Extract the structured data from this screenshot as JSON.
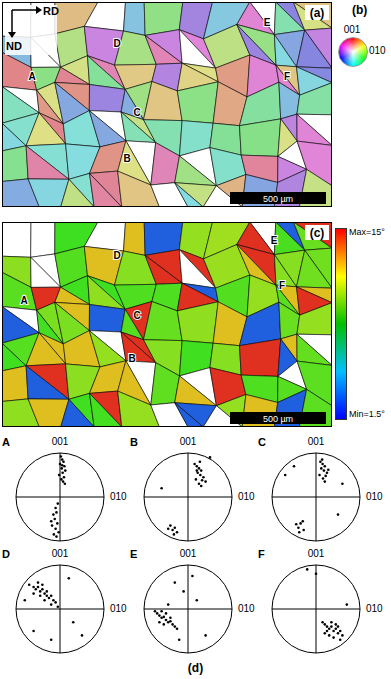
{
  "panel_a": {
    "label": "(a)",
    "directions": [
      "RD",
      "ND"
    ],
    "scale_bar": "500 µm",
    "grain_labels": [
      "A",
      "B",
      "C",
      "D",
      "E",
      "F"
    ]
  },
  "panel_b": {
    "label": "(b)",
    "top": "001",
    "right": "010"
  },
  "panel_c": {
    "label": "(c)",
    "scale_bar": "500 µm",
    "grain_labels": [
      "A",
      "B",
      "C",
      "D",
      "E",
      "F"
    ],
    "colorbar": {
      "max": "Max=15°",
      "min": "Min=1.5°"
    }
  },
  "panel_d": {
    "label": "(d)"
  },
  "chart_data": [
    {
      "type": "scatter",
      "title": "A",
      "top_label": "001",
      "right_label": "010",
      "xlim": [
        -1,
        1
      ],
      "ylim": [
        -1,
        1
      ],
      "tick_labels": false,
      "grid": false,
      "color": "#000000",
      "marker": "circle",
      "x": [
        0.02,
        0.05,
        0.08,
        0.0,
        0.1,
        0.04,
        0.12,
        0.06,
        -0.02,
        0.09,
        0.03,
        0.07,
        0.11,
        0.05,
        -0.05,
        -0.1,
        -0.08,
        -0.15,
        -0.12,
        -0.2,
        -0.06,
        -0.18,
        -0.1,
        -0.03,
        -0.14,
        -0.08
      ],
      "values": [
        0.92,
        0.85,
        0.8,
        0.75,
        0.7,
        0.65,
        0.6,
        0.55,
        0.5,
        0.45,
        0.4,
        0.35,
        0.3,
        0.72,
        -0.15,
        -0.25,
        -0.35,
        -0.4,
        -0.5,
        -0.55,
        -0.6,
        -0.65,
        -0.72,
        -0.8,
        -0.85,
        -0.9
      ]
    },
    {
      "type": "scatter",
      "title": "B",
      "top_label": "001",
      "right_label": "010",
      "xlim": [
        -1,
        1
      ],
      "ylim": [
        -1,
        1
      ],
      "tick_labels": false,
      "grid": false,
      "color": "#000000",
      "marker": "circle",
      "x": [
        0.15,
        0.2,
        0.25,
        0.3,
        0.22,
        0.28,
        0.35,
        0.18,
        0.32,
        0.25,
        0.4,
        0.2,
        0.27,
        0.3,
        -0.3,
        -0.35,
        -0.4,
        -0.25,
        -0.45,
        -0.32,
        0.5,
        -0.6
      ],
      "values": [
        0.75,
        0.7,
        0.65,
        0.6,
        0.55,
        0.5,
        0.45,
        0.4,
        0.38,
        0.3,
        0.35,
        0.6,
        0.8,
        0.25,
        -0.7,
        -0.75,
        -0.65,
        -0.8,
        -0.72,
        -0.85,
        0.9,
        0.2
      ]
    },
    {
      "type": "scatter",
      "title": "C",
      "top_label": "001",
      "right_label": "010",
      "xlim": [
        -1,
        1
      ],
      "ylim": [
        -1,
        1
      ],
      "tick_labels": false,
      "grid": false,
      "color": "#000000",
      "marker": "circle",
      "x": [
        0.1,
        0.15,
        0.2,
        0.12,
        0.18,
        0.25,
        0.08,
        0.22,
        0.16,
        0.28,
        0.14,
        0.2,
        -0.3,
        -0.35,
        -0.4,
        -0.28,
        -0.45,
        -0.38,
        0.6,
        -0.7,
        0.5,
        -0.5
      ],
      "values": [
        0.8,
        0.75,
        0.7,
        0.65,
        0.6,
        0.55,
        0.5,
        0.48,
        0.42,
        0.62,
        0.85,
        0.35,
        -0.55,
        -0.6,
        -0.7,
        -0.75,
        -0.62,
        -0.8,
        0.3,
        0.5,
        -0.4,
        0.7
      ]
    },
    {
      "type": "scatter",
      "title": "D",
      "top_label": "001",
      "right_label": "010",
      "xlim": [
        -1,
        1
      ],
      "ylim": [
        -1,
        1
      ],
      "tick_labels": false,
      "grid": false,
      "color": "#000000",
      "marker": "circle",
      "x": [
        -0.7,
        -0.6,
        -0.55,
        -0.5,
        -0.45,
        -0.4,
        -0.35,
        -0.3,
        -0.25,
        -0.2,
        -0.15,
        -0.1,
        -0.05,
        -0.5,
        -0.4,
        -0.3,
        -0.6,
        -0.2,
        -0.35,
        -0.45,
        -0.8,
        0.3,
        0.5,
        -0.2,
        0.2,
        -0.6
      ],
      "values": [
        0.55,
        0.5,
        0.45,
        0.5,
        0.4,
        0.45,
        0.35,
        0.3,
        0.25,
        0.3,
        0.2,
        0.15,
        0.05,
        0.6,
        0.55,
        0.4,
        0.35,
        0.1,
        0.2,
        0.3,
        0.2,
        -0.3,
        -0.6,
        -0.7,
        0.7,
        -0.5
      ]
    },
    {
      "type": "scatter",
      "title": "E",
      "top_label": "001",
      "right_label": "010",
      "xlim": [
        -1,
        1
      ],
      "ylim": [
        -1,
        1
      ],
      "tick_labels": false,
      "grid": false,
      "color": "#000000",
      "marker": "circle",
      "x": [
        -0.75,
        -0.7,
        -0.65,
        -0.6,
        -0.55,
        -0.5,
        -0.45,
        -0.4,
        -0.35,
        -0.3,
        -0.25,
        -0.6,
        -0.5,
        -0.4,
        -0.65,
        -0.55,
        -0.1,
        0.2,
        -0.3,
        0.4,
        -0.2,
        0.1,
        -0.45
      ],
      "values": [
        -0.05,
        -0.1,
        -0.15,
        -0.2,
        -0.18,
        -0.25,
        -0.3,
        -0.28,
        -0.35,
        -0.4,
        -0.45,
        -0.05,
        -0.1,
        -0.2,
        -0.3,
        -0.35,
        0.4,
        0.2,
        0.6,
        -0.6,
        -0.7,
        0.75,
        0.1
      ]
    },
    {
      "type": "scatter",
      "title": "F",
      "top_label": "001",
      "right_label": "010",
      "xlim": [
        -1,
        1
      ],
      "ylim": [
        -1,
        1
      ],
      "tick_labels": false,
      "grid": false,
      "color": "#000000",
      "marker": "circle",
      "x": [
        0.15,
        0.2,
        0.25,
        0.3,
        0.35,
        0.4,
        0.45,
        0.5,
        0.55,
        0.6,
        0.3,
        0.4,
        0.5,
        0.25,
        0.35,
        0.45,
        0.2,
        0.55,
        -0.2,
        0.7,
        0.0
      ],
      "values": [
        -0.3,
        -0.35,
        -0.4,
        -0.45,
        -0.4,
        -0.5,
        -0.45,
        -0.55,
        -0.5,
        -0.6,
        -0.6,
        -0.65,
        -0.4,
        -0.5,
        -0.3,
        -0.35,
        -0.55,
        -0.7,
        0.9,
        0.1,
        0.8
      ]
    }
  ]
}
